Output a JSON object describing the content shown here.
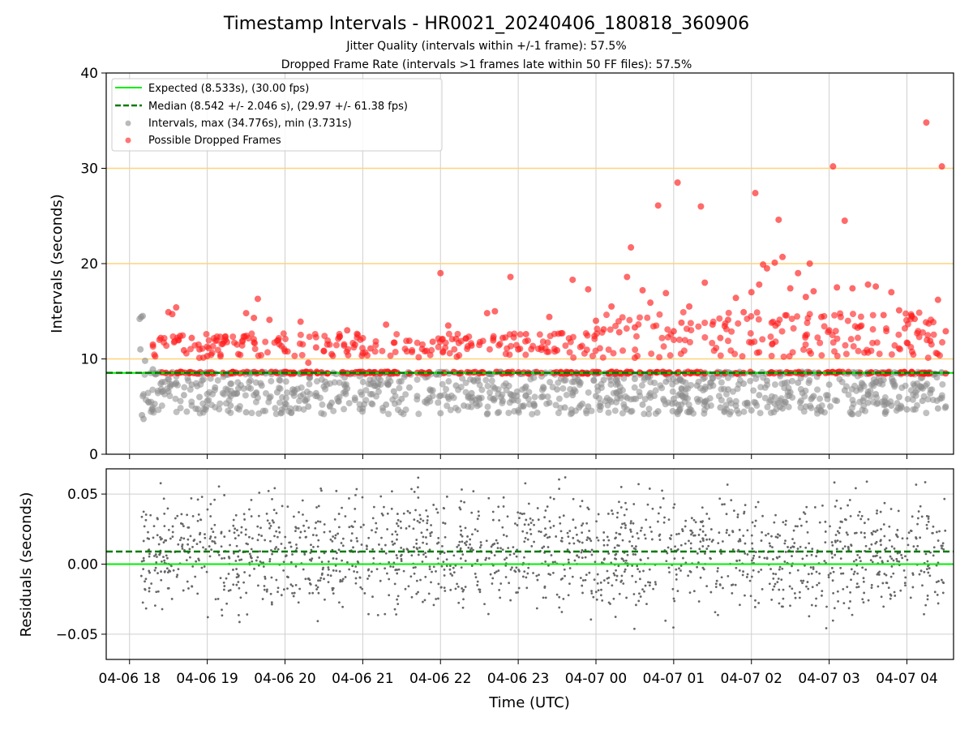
{
  "figure": {
    "title": "Timestamp Intervals - HR0021_20240406_180818_360906",
    "subtitle_1": "Jitter Quality (intervals within +/-1 frame): 57.5%",
    "subtitle_2": "Dropped Frame Rate (intervals >1 frames late within 50 FF files): 57.5%",
    "xlabel": "Time (UTC)"
  },
  "colors": {
    "expected": "#00ee00",
    "median": "#007a00",
    "intervals": "#8c8c8c",
    "dropped": "#ff1a1a",
    "threshold": "#ffd27a",
    "grid": "#cfcfcf",
    "residuals": "#666666"
  },
  "chart_data": [
    {
      "type": "scatter",
      "ylabel": "Intervals (seconds)",
      "ylim": [
        0,
        40
      ],
      "yticks": [
        "0",
        "10",
        "20",
        "30",
        "40"
      ],
      "grid": true,
      "legend_position": "top-left",
      "legend": [
        {
          "label": "Expected (8.533s), (30.00 fps)",
          "style": "solid-line",
          "color_key": "expected"
        },
        {
          "label": "Median (8.542 +/- 2.046 s), (29.97 +/- 61.38 fps)",
          "style": "dashed-line",
          "color_key": "median"
        },
        {
          "label": "Intervals, max (34.776s), min (3.731s)",
          "style": "marker",
          "color_key": "intervals"
        },
        {
          "label": "Possible Dropped Frames",
          "style": "marker",
          "color_key": "dropped"
        }
      ],
      "expected_interval": 8.533,
      "median_interval": 8.542,
      "threshold_lines": [
        10,
        20,
        30
      ],
      "x_range_hours": [
        17.7,
        28.6
      ],
      "series": [
        {
          "name": "Intervals, max (34.776s), min (3.731s)",
          "points": [
            [
              18.13,
              14.2
            ],
            [
              18.15,
              14.4
            ],
            [
              18.17,
              14.5
            ],
            [
              18.14,
              11.0
            ],
            [
              18.16,
              4.1
            ],
            [
              18.18,
              3.7
            ],
            [
              18.2,
              9.8
            ],
            [
              18.3,
              8.9
            ],
            [
              18.4,
              7.4
            ],
            [
              18.5,
              6.6
            ],
            [
              18.6,
              7.5
            ],
            [
              18.7,
              6.2
            ],
            [
              18.8,
              7.3
            ],
            [
              18.9,
              6.0
            ],
            [
              19.0,
              5.6
            ],
            [
              19.1,
              7.0
            ],
            [
              19.2,
              6.4
            ],
            [
              19.3,
              5.1
            ],
            [
              19.4,
              6.9
            ],
            [
              19.5,
              4.4
            ],
            [
              19.6,
              6.2
            ],
            [
              19.7,
              7.2
            ],
            [
              19.8,
              5.9
            ],
            [
              19.9,
              6.5
            ],
            [
              20.0,
              5.3
            ],
            [
              20.1,
              6.8
            ],
            [
              20.2,
              6.1
            ],
            [
              20.3,
              5.0
            ],
            [
              20.4,
              6.4
            ],
            [
              20.5,
              7.1
            ],
            [
              20.6,
              5.4
            ],
            [
              20.7,
              6.0
            ],
            [
              20.8,
              6.9
            ],
            [
              20.9,
              5.7
            ],
            [
              21.0,
              4.8
            ],
            [
              21.1,
              6.3
            ],
            [
              21.2,
              7.4
            ],
            [
              21.3,
              5.2
            ],
            [
              21.4,
              6.6
            ],
            [
              21.5,
              5.8
            ],
            [
              21.6,
              7.0
            ],
            [
              21.7,
              6.1
            ],
            [
              21.8,
              5.5
            ],
            [
              21.9,
              6.7
            ],
            [
              22.0,
              4.3
            ],
            [
              22.1,
              6.0
            ],
            [
              22.2,
              7.2
            ],
            [
              22.3,
              5.1
            ],
            [
              22.4,
              6.4
            ],
            [
              22.5,
              5.8
            ],
            [
              22.6,
              4.2
            ],
            [
              22.7,
              6.9
            ],
            [
              22.8,
              5.6
            ],
            [
              22.9,
              6.3
            ],
            [
              23.0,
              4.6
            ],
            [
              23.1,
              7.1
            ],
            [
              23.2,
              5.3
            ],
            [
              23.3,
              6.0
            ],
            [
              23.4,
              5.4
            ],
            [
              23.5,
              6.8
            ],
            [
              23.6,
              4.9
            ],
            [
              23.7,
              6.2
            ],
            [
              23.8,
              7.5
            ],
            [
              23.9,
              5.0
            ],
            [
              24.0,
              6.1
            ],
            [
              24.1,
              7.8
            ],
            [
              24.2,
              5.5
            ],
            [
              24.3,
              6.6
            ],
            [
              24.4,
              4.7
            ],
            [
              24.5,
              7.9
            ],
            [
              24.6,
              5.2
            ],
            [
              24.7,
              6.4
            ],
            [
              24.8,
              4.5
            ],
            [
              24.9,
              7.6
            ],
            [
              25.0,
              5.8
            ],
            [
              25.1,
              6.9
            ],
            [
              25.2,
              4.4
            ],
            [
              25.3,
              7.2
            ],
            [
              25.4,
              5.5
            ],
            [
              25.5,
              8.0
            ],
            [
              25.6,
              4.9
            ],
            [
              25.7,
              6.8
            ],
            [
              25.8,
              5.1
            ],
            [
              25.9,
              7.4
            ],
            [
              26.0,
              4.6
            ],
            [
              26.1,
              6.2
            ],
            [
              26.2,
              7.7
            ],
            [
              26.3,
              5.3
            ],
            [
              26.4,
              4.8
            ],
            [
              26.5,
              6.5
            ],
            [
              26.6,
              7.5
            ],
            [
              26.7,
              5.0
            ],
            [
              26.8,
              6.1
            ],
            [
              26.9,
              4.5
            ],
            [
              27.0,
              7.3
            ],
            [
              27.1,
              5.6
            ],
            [
              27.2,
              6.7
            ],
            [
              27.3,
              4.2
            ],
            [
              27.4,
              7.0
            ],
            [
              27.5,
              5.4
            ],
            [
              27.6,
              6.3
            ],
            [
              27.7,
              7.8
            ],
            [
              27.8,
              5.1
            ],
            [
              27.9,
              6.0
            ],
            [
              28.0,
              4.7
            ],
            [
              28.1,
              7.2
            ],
            [
              28.2,
              5.6
            ],
            [
              28.3,
              6.4
            ],
            [
              28.4,
              4.8
            ],
            [
              28.45,
              5.9
            ],
            [
              28.5,
              5.0
            ]
          ]
        },
        {
          "name": "Possible Dropped Frames",
          "points": [
            [
              18.3,
              11.5
            ],
            [
              18.4,
              12.2
            ],
            [
              18.5,
              14.9
            ],
            [
              18.55,
              14.7
            ],
            [
              18.6,
              15.4
            ],
            [
              18.65,
              12.4
            ],
            [
              18.7,
              10.9
            ],
            [
              18.8,
              12.2
            ],
            [
              18.9,
              11.0
            ],
            [
              19.0,
              10.3
            ],
            [
              19.2,
              11.6
            ],
            [
              19.4,
              10.5
            ],
            [
              19.5,
              14.8
            ],
            [
              19.6,
              14.3
            ],
            [
              19.65,
              16.3
            ],
            [
              19.8,
              14.1
            ],
            [
              19.9,
              11.9
            ],
            [
              20.0,
              10.8
            ],
            [
              20.2,
              13.9
            ],
            [
              20.3,
              9.6
            ],
            [
              20.4,
              11.2
            ],
            [
              20.5,
              10.8
            ],
            [
              20.6,
              10.5
            ],
            [
              20.7,
              12.3
            ],
            [
              20.8,
              13.0
            ],
            [
              20.9,
              11.5
            ],
            [
              21.0,
              10.6
            ],
            [
              21.1,
              11.1
            ],
            [
              21.3,
              13.6
            ],
            [
              21.4,
              11.7
            ],
            [
              21.6,
              11.9
            ],
            [
              21.8,
              10.8
            ],
            [
              21.9,
              11.8
            ],
            [
              22.0,
              19.0
            ],
            [
              22.1,
              13.5
            ],
            [
              22.2,
              12.1
            ],
            [
              22.4,
              11.4
            ],
            [
              22.6,
              14.8
            ],
            [
              22.7,
              15.0
            ],
            [
              22.8,
              12.2
            ],
            [
              22.9,
              18.6
            ],
            [
              23.0,
              11.0
            ],
            [
              23.1,
              12.6
            ],
            [
              23.3,
              11.2
            ],
            [
              23.4,
              14.4
            ],
            [
              23.5,
              10.9
            ],
            [
              23.7,
              18.3
            ],
            [
              23.9,
              17.3
            ],
            [
              24.0,
              14.0
            ],
            [
              24.1,
              13.1
            ],
            [
              24.2,
              15.5
            ],
            [
              24.3,
              12.8
            ],
            [
              24.4,
              18.6
            ],
            [
              24.5,
              13.3
            ],
            [
              24.45,
              21.7
            ],
            [
              24.6,
              17.2
            ],
            [
              24.7,
              15.9
            ],
            [
              24.8,
              26.1
            ],
            [
              24.9,
              16.9
            ],
            [
              25.0,
              12.9
            ],
            [
              25.05,
              28.5
            ],
            [
              25.1,
              13.8
            ],
            [
              25.2,
              15.5
            ],
            [
              25.35,
              26.0
            ],
            [
              25.4,
              18.0
            ],
            [
              25.5,
              13.6
            ],
            [
              25.6,
              12.2
            ],
            [
              25.7,
              14.1
            ],
            [
              25.8,
              16.4
            ],
            [
              25.9,
              14.9
            ],
            [
              26.0,
              17.0
            ],
            [
              26.05,
              27.4
            ],
            [
              26.1,
              17.8
            ],
            [
              26.15,
              19.9
            ],
            [
              26.2,
              19.5
            ],
            [
              26.3,
              20.1
            ],
            [
              26.35,
              24.6
            ],
            [
              26.4,
              20.7
            ],
            [
              26.5,
              17.4
            ],
            [
              26.6,
              19.0
            ],
            [
              26.7,
              16.5
            ],
            [
              26.75,
              20.0
            ],
            [
              26.8,
              17.1
            ],
            [
              26.9,
              14.4
            ],
            [
              27.0,
              13.0
            ],
            [
              27.05,
              30.2
            ],
            [
              27.1,
              17.5
            ],
            [
              27.2,
              24.5
            ],
            [
              27.3,
              17.4
            ],
            [
              27.4,
              13.4
            ],
            [
              27.5,
              17.8
            ],
            [
              27.6,
              17.6
            ],
            [
              27.7,
              14.6
            ],
            [
              27.8,
              17.0
            ],
            [
              27.9,
              15.1
            ],
            [
              28.0,
              11.7
            ],
            [
              28.1,
              14.2
            ],
            [
              28.25,
              34.8
            ],
            [
              28.3,
              11.9
            ],
            [
              28.4,
              16.2
            ],
            [
              28.45,
              30.2
            ],
            [
              28.5,
              12.9
            ]
          ]
        }
      ]
    },
    {
      "type": "scatter",
      "ylabel": "Residuals (seconds)",
      "ylim": [
        -0.068,
        0.068
      ],
      "yticks": [
        "−0.05",
        "0.00",
        "0.05"
      ],
      "grid": true,
      "median_offset": 0.009,
      "zero_line": 0.0,
      "series": [
        {
          "name": "",
          "points_note": "dense residual scatter between -0.068 and 0.068"
        }
      ],
      "xticks": [
        "04-06 18",
        "04-06 19",
        "04-06 20",
        "04-06 21",
        "04-06 22",
        "04-06 23",
        "04-07 00",
        "04-07 01",
        "04-07 02",
        "04-07 03",
        "04-07 04"
      ]
    }
  ]
}
